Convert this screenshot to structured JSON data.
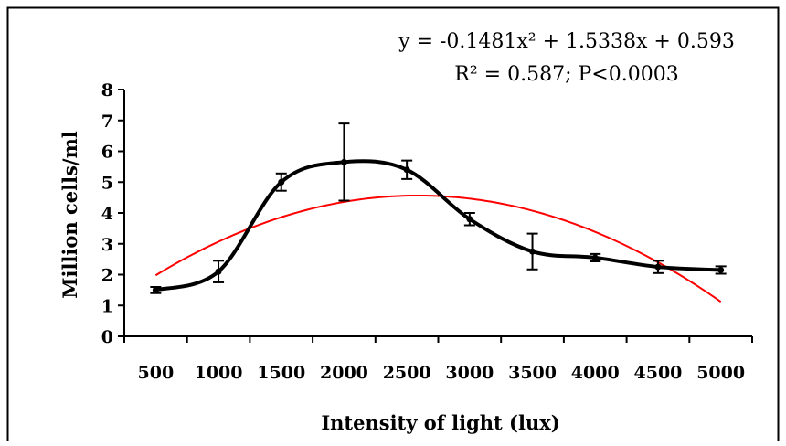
{
  "chart_data": {
    "type": "line",
    "title": "",
    "xlabel": "Intensity of light (lux)",
    "ylabel": "Million cells/ml",
    "categories": [
      "500",
      "1000",
      "1500",
      "2000",
      "2500",
      "3000",
      "3500",
      "4000",
      "4500",
      "5000"
    ],
    "ylim": [
      0,
      8
    ],
    "yticks": [
      "0",
      "1",
      "2",
      "3",
      "4",
      "5",
      "6",
      "7",
      "8"
    ],
    "series": [
      {
        "values": [
          1.5,
          2.1,
          5.0,
          5.65,
          5.4,
          3.8,
          2.75,
          2.55,
          2.25,
          2.15
        ],
        "error": [
          0.1,
          0.35,
          0.28,
          1.25,
          0.3,
          0.2,
          0.58,
          0.12,
          0.2,
          0.12
        ],
        "color": "#000000",
        "smooth": true
      },
      {
        "trendline": "polynomial",
        "coefficients": [
          -0.1481,
          1.5338,
          0.593
        ],
        "color": "#ff0000"
      }
    ],
    "annotations": {
      "equation": "y = -0.1481x² + 1.5338x + 0.593",
      "stats": "R² = 0.587; P<0.0003"
    },
    "grid": false,
    "legend": "none"
  }
}
